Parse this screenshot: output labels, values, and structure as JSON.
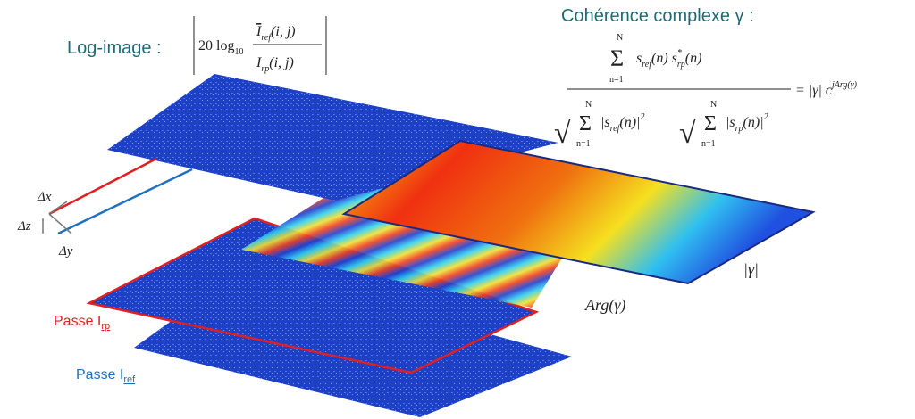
{
  "log_image": {
    "label": "Log-image :",
    "formula": {
      "coef": "20 log",
      "base": "10",
      "bar_i": "I",
      "num_sub": "ref",
      "den_sub": "rp",
      "args": "(i, j)"
    }
  },
  "coherence": {
    "label": "Cohérence complexe γ :",
    "formula": {
      "sum": "Σ",
      "upper": "N",
      "lower": "n=1",
      "s": "s",
      "ref": "ref",
      "rp": "rp",
      "star": "*",
      "n": "(n)",
      "abs": "|",
      "sq": "2",
      "root": "√",
      "eq": "= |γ| c",
      "exp": "jArg(γ)"
    }
  },
  "layers": {
    "magnitude": "|γ|",
    "phase": "Arg(γ)"
  },
  "passes": [
    {
      "label": "Passe I",
      "sub": "rp"
    },
    {
      "label": "Passe I",
      "sub": "ref"
    }
  ],
  "axes": {
    "dx": "Δx",
    "dz": "Δz",
    "dy": "Δy"
  }
}
